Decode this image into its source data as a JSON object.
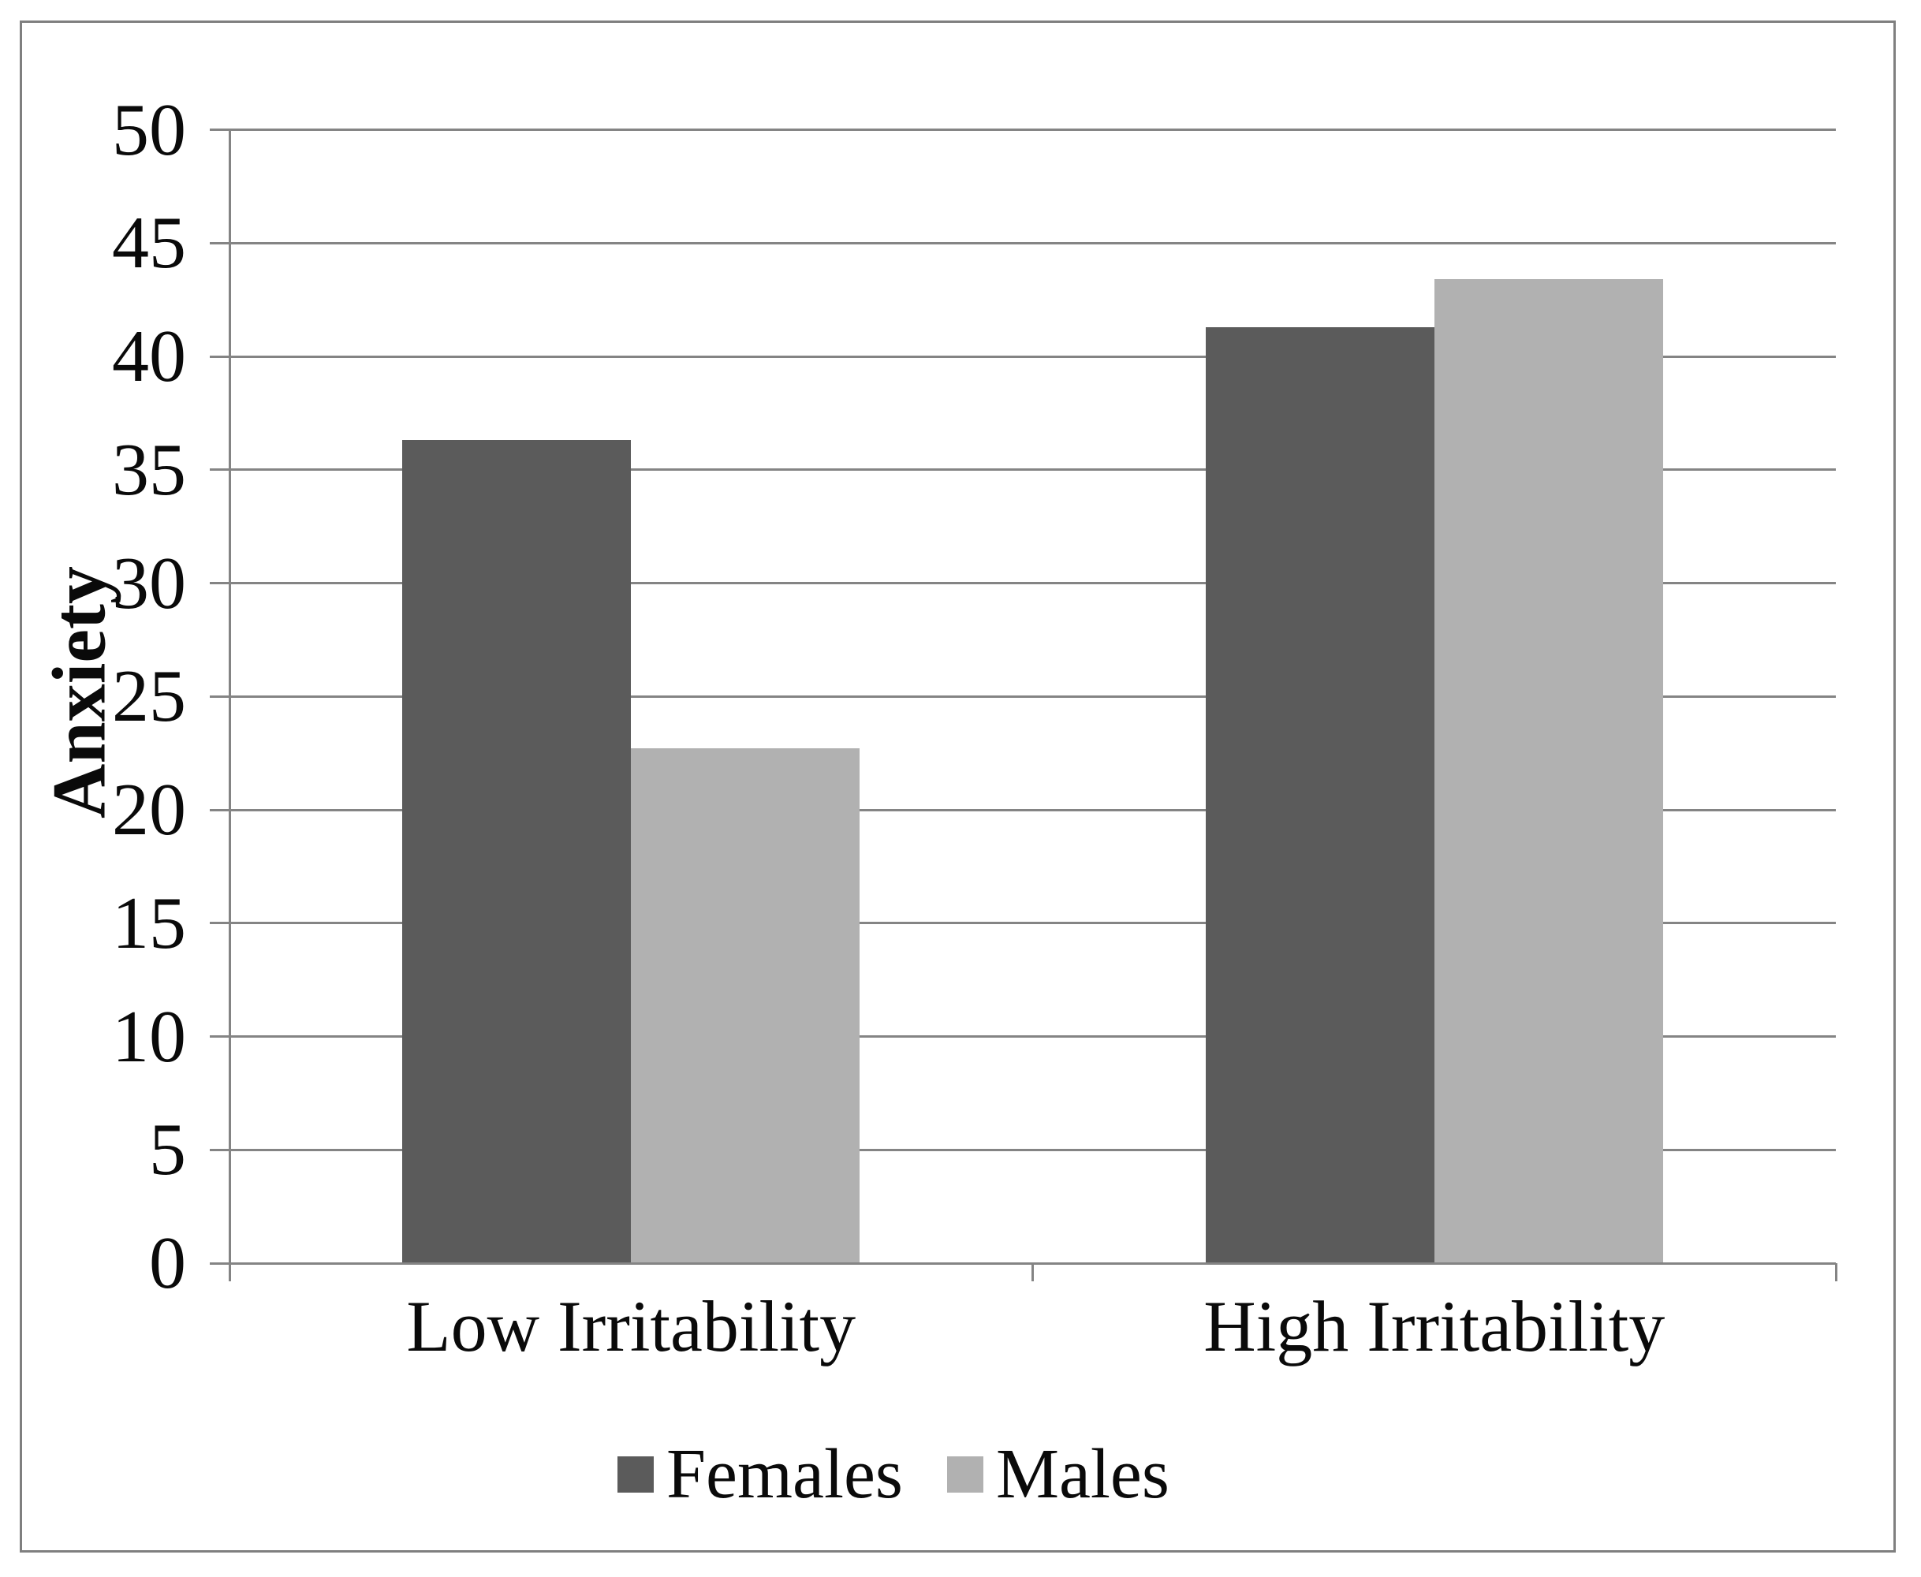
{
  "figure": {
    "background_color": "#ffffff",
    "frame_color": "#7f7f7f",
    "axis_color": "#848484",
    "text_color": "#0a0a0a"
  },
  "chart_data": {
    "type": "bar",
    "title": "",
    "xlabel": "",
    "ylabel": "Anxiety",
    "categories": [
      "Low Irritability",
      "High Irritability"
    ],
    "series": [
      {
        "name": "Females",
        "color": "#5b5b5b",
        "values": [
          36.3,
          41.3
        ]
      },
      {
        "name": "Males",
        "color": "#b1b1b1",
        "values": [
          22.7,
          43.4
        ]
      }
    ],
    "ylim": [
      0,
      50
    ],
    "ytick_interval": 5,
    "yticks": [
      0,
      5,
      10,
      15,
      20,
      25,
      30,
      35,
      40,
      45,
      50
    ],
    "grid": "horizontal",
    "legend_position": "bottom"
  }
}
